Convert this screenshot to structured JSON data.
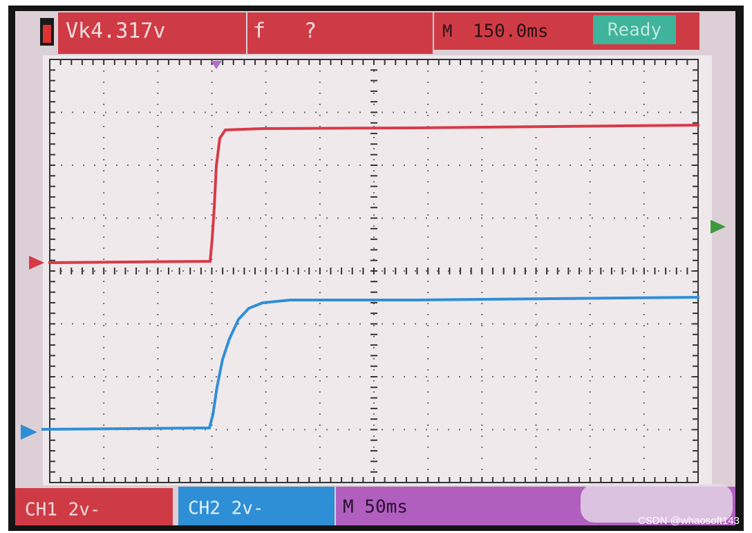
{
  "header": {
    "voltage": "Vk4.317v",
    "freq_label": "f",
    "freq_value": "?",
    "time_marker": "M",
    "time_value": "150.0ms",
    "status": "Ready"
  },
  "footer": {
    "ch1": "CH1 2v-",
    "ch2": "CH2 2v-",
    "timebase": "M 50ms"
  },
  "watermark": "CSDN @whaosoft143"
}
